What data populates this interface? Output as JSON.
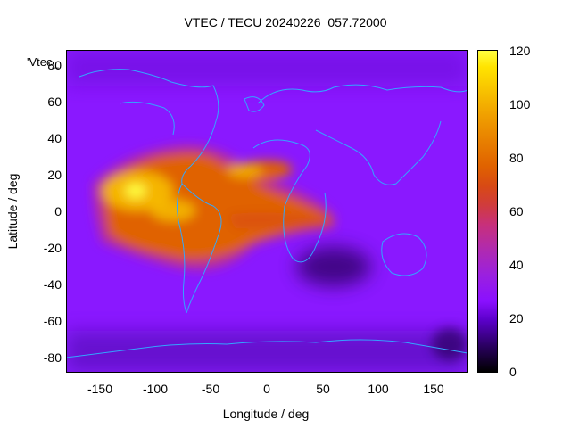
{
  "title": "VTEC / TECU 20240226_057.72000",
  "series_key": "'Vtec_",
  "x_axis": {
    "label": "Longitude / deg",
    "ticks": [
      "-150",
      "-100",
      "-50",
      "0",
      "50",
      "100",
      "150"
    ],
    "range": [
      -180,
      180
    ]
  },
  "y_axis": {
    "label": "Latitude / deg",
    "ticks": [
      "80",
      "60",
      "40",
      "20",
      "0",
      "-20",
      "-40",
      "-60",
      "-80"
    ],
    "range": [
      -90,
      90
    ]
  },
  "colorbar": {
    "ticks": [
      "120",
      "100",
      "80",
      "60",
      "40",
      "20",
      "0"
    ],
    "range": [
      0,
      120
    ],
    "palette": [
      "#000000",
      "#5a00c8",
      "#9a20ff",
      "#c8307a",
      "#e06200",
      "#f8c400",
      "#ffff40"
    ]
  },
  "map": {
    "background_value_tecu": 25,
    "coastline_color": "#33a6ff"
  },
  "chart_data": {
    "type": "heatmap",
    "title": "VTEC / TECU 20240226_057.72000",
    "xlabel": "Longitude / deg",
    "ylabel": "Latitude / deg",
    "xlim": [
      -180,
      180
    ],
    "ylim": [
      -90,
      90
    ],
    "colorbar_range": [
      0,
      120
    ],
    "series": [
      {
        "name": "'Vtec_"
      }
    ],
    "features": [
      {
        "lon": -120,
        "lat": 10,
        "vtec": 110
      },
      {
        "lon": -100,
        "lat": 0,
        "vtec": 90
      },
      {
        "lon": -80,
        "lat": -10,
        "vtec": 80
      },
      {
        "lon": -40,
        "lat": 20,
        "vtec": 75
      },
      {
        "lon": 20,
        "lat": 20,
        "vtec": 65
      },
      {
        "lon": 40,
        "lat": 0,
        "vtec": 70
      },
      {
        "lon": 0,
        "lat": -40,
        "vtec": 25
      },
      {
        "lon": 60,
        "lat": -40,
        "vtec": 12
      },
      {
        "lon": 150,
        "lat": -80,
        "vtec": 10
      }
    ]
  }
}
